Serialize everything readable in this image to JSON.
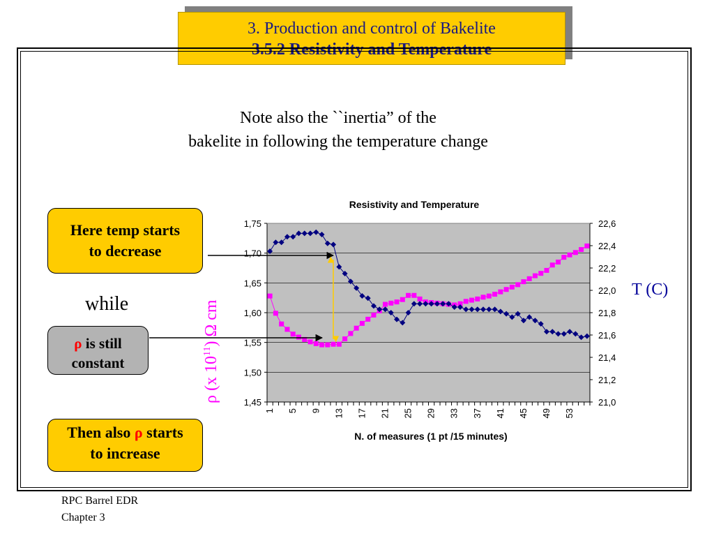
{
  "title": {
    "line1": "3. Production and control of  Bakelite",
    "line2": "3.5.2 Resistivity and Temperature"
  },
  "note": {
    "line1": "Note also the ``inertia” of the",
    "line2": "bakelite in following the temperature change"
  },
  "callouts": {
    "temp_decrease_line1": "Here temp starts",
    "temp_decrease_line2": "to decrease",
    "while": "while",
    "rho_symbol": "ρ",
    "rho_still_text": " is still",
    "rho_constant": "constant",
    "then_also": "Then also ",
    "starts": " starts",
    "to_increase": "to increase"
  },
  "side_labels": {
    "rho_axis_prefix": "ρ (x 10",
    "rho_axis_exp": "11",
    "rho_axis_suffix": ") Ω cm",
    "temperature_axis": "T (C)"
  },
  "footer": {
    "line1": "RPC Barrel EDR",
    "line2": "Chapter 3"
  },
  "colors": {
    "plot_bg": "#c0c0c0",
    "temperature_series": "#000080",
    "resistivity_series": "#ff00ff",
    "marker_arrow": "#ffcc00"
  },
  "chart_data": {
    "type": "line",
    "title": "Resistivity and Temperature",
    "xlabel": "N. of measures (1 pt /15 minutes)",
    "ylabel": "",
    "y2label": "",
    "x": [
      1,
      2,
      3,
      4,
      5,
      6,
      7,
      8,
      9,
      10,
      11,
      12,
      13,
      14,
      15,
      16,
      17,
      18,
      19,
      20,
      21,
      22,
      23,
      24,
      25,
      26,
      27,
      28,
      29,
      30,
      31,
      32,
      33,
      34,
      35,
      36,
      37,
      38,
      39,
      40,
      41,
      42,
      43,
      44,
      45,
      46,
      47,
      48,
      49,
      50,
      51,
      52,
      53,
      54,
      55,
      56
    ],
    "x_tick_labels": [
      "1",
      "5",
      "9",
      "13",
      "17",
      "21",
      "25",
      "29",
      "33",
      "37",
      "41",
      "45",
      "49",
      "53"
    ],
    "xlim": [
      1,
      56
    ],
    "ylim": [
      1.45,
      1.75
    ],
    "y_ticks": [
      "1,45",
      "1,50",
      "1,55",
      "1,60",
      "1,65",
      "1,70",
      "1,75"
    ],
    "y2lim": [
      21.0,
      22.6
    ],
    "y2_ticks": [
      "21,0",
      "21,2",
      "21,4",
      "21,6",
      "21,8",
      "22,0",
      "22,2",
      "22,4",
      "22,6"
    ],
    "grid": "horizontal",
    "series": [
      {
        "axis": "right",
        "marker": "diamond",
        "values": [
          22.35,
          22.43,
          22.43,
          22.48,
          22.48,
          22.51,
          22.51,
          22.51,
          22.52,
          22.5,
          22.42,
          22.41,
          22.21,
          22.15,
          22.08,
          22.02,
          21.95,
          21.93,
          21.86,
          21.83,
          21.83,
          21.8,
          21.74,
          21.71,
          21.8,
          21.88,
          21.88,
          21.88,
          21.88,
          21.88,
          21.88,
          21.88,
          21.85,
          21.85,
          21.83,
          21.83,
          21.83,
          21.83,
          21.83,
          21.83,
          21.81,
          21.79,
          21.76,
          21.79,
          21.73,
          21.76,
          21.73,
          21.7,
          21.63,
          21.63,
          21.61,
          21.61,
          21.63,
          21.61,
          21.58,
          21.59
        ]
      },
      {
        "axis": "left",
        "marker": "square",
        "values": [
          1.628,
          1.599,
          1.581,
          1.572,
          1.564,
          1.559,
          1.555,
          1.551,
          1.548,
          1.546,
          1.546,
          1.547,
          1.547,
          1.556,
          1.565,
          1.574,
          1.582,
          1.589,
          1.596,
          1.603,
          1.614,
          1.616,
          1.618,
          1.622,
          1.629,
          1.629,
          1.623,
          1.618,
          1.617,
          1.616,
          1.615,
          1.614,
          1.613,
          1.615,
          1.619,
          1.621,
          1.623,
          1.626,
          1.628,
          1.631,
          1.635,
          1.639,
          1.643,
          1.647,
          1.652,
          1.657,
          1.662,
          1.666,
          1.671,
          1.68,
          1.685,
          1.693,
          1.697,
          1.701,
          1.706,
          1.712
        ]
      }
    ]
  }
}
